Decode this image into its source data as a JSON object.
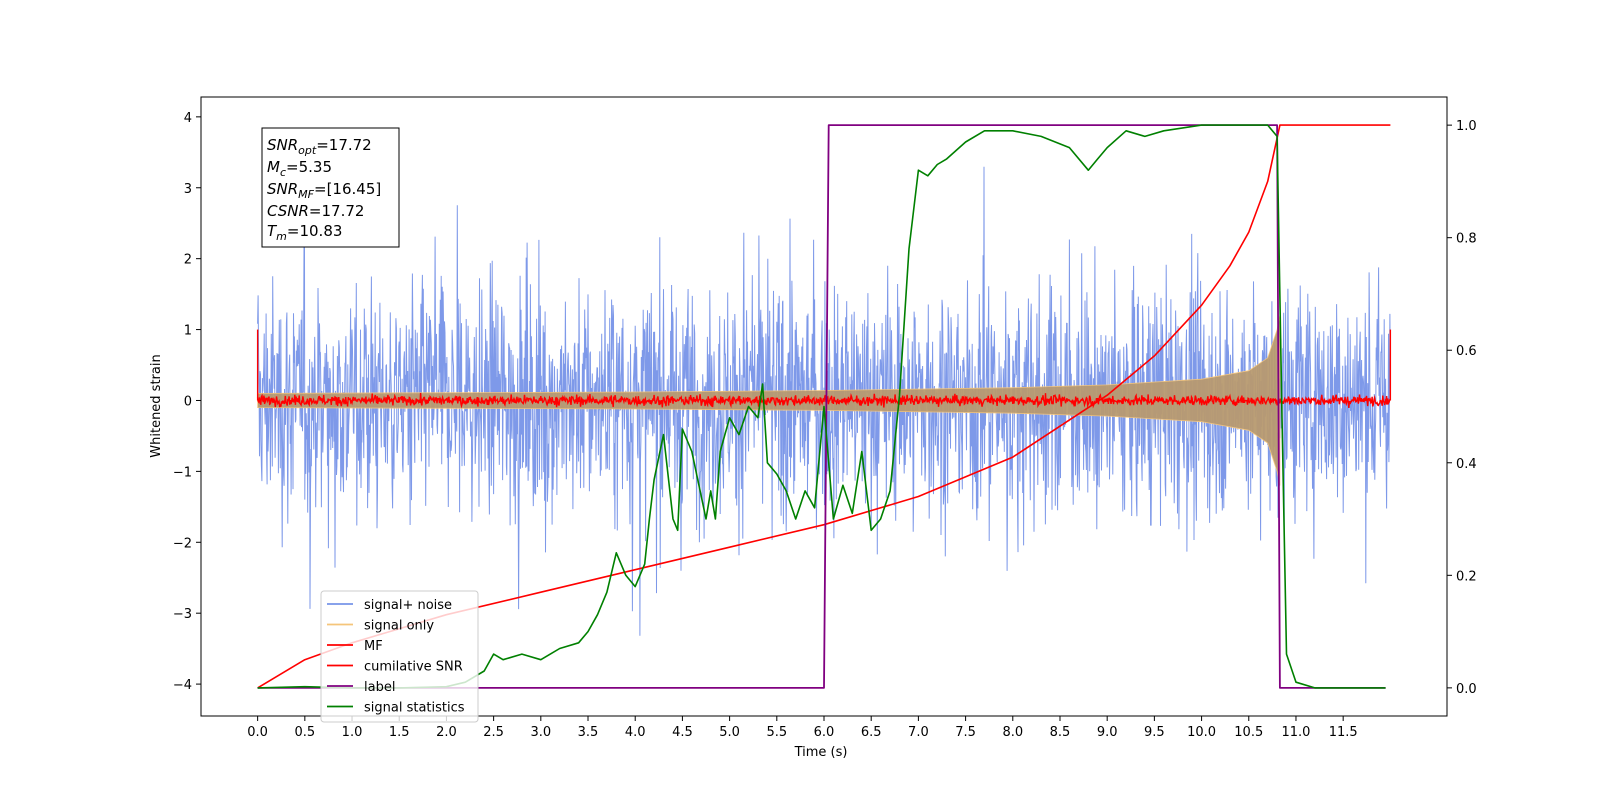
{
  "chart_data": {
    "type": "line",
    "xlabel": "Time (s)",
    "ylabel": "Whitened strain",
    "xlim": [
      -0.6,
      12.6
    ],
    "ylim": [
      -4.45,
      4.28
    ],
    "y2lim": [
      -0.05,
      1.05
    ],
    "x_ticks": [
      "0.0",
      "0.5",
      "1.0",
      "1.5",
      "2.0",
      "2.5",
      "3.0",
      "3.5",
      "4.0",
      "4.5",
      "5.0",
      "5.5",
      "6.0",
      "6.5",
      "7.0",
      "7.5",
      "8.0",
      "8.5",
      "9.0",
      "9.5",
      "10.0",
      "10.5",
      "11.0",
      "11.5"
    ],
    "y_ticks": [
      "4",
      "3",
      "2",
      "1",
      "0",
      "−1",
      "−2",
      "−3",
      "−4"
    ],
    "y2_ticks": [
      "1.0",
      "0.8",
      "0.6",
      "0.4",
      "0.2",
      "0.0"
    ],
    "grid": false,
    "legend_position": "lower-left",
    "annotation": {
      "snr_opt": {
        "name": "SNR",
        "sub": "opt",
        "value": "=17.72"
      },
      "mc": {
        "name": "M",
        "sub": "c",
        "value": "=5.35"
      },
      "snr_mf": {
        "name": "SNR",
        "sub": "MF",
        "value": "=[16.45]"
      },
      "csnr": {
        "name": "CSNR",
        "value": "=17.72"
      },
      "tm": {
        "name": "T",
        "sub": "m",
        "value": "=10.83"
      }
    },
    "series": [
      {
        "name": "signal+ noise",
        "color": "#7794e8",
        "axis": "left",
        "x_range": [
          0.0,
          12.0
        ],
        "amplitude_range": [
          -3.6,
          3.9
        ]
      },
      {
        "name": "signal only",
        "color": "#f5c57a",
        "axis": "left",
        "envelope": {
          "x": [
            0.0,
            2.0,
            4.0,
            6.0,
            8.0,
            9.0,
            10.0,
            10.5,
            10.7,
            10.8,
            10.83
          ],
          "amp": [
            0.1,
            0.11,
            0.12,
            0.14,
            0.18,
            0.22,
            0.3,
            0.42,
            0.6,
            1.0,
            1.2
          ]
        }
      },
      {
        "name": "MF",
        "color": "#ff0000",
        "axis": "left",
        "x_range": [
          0.0,
          12.0
        ],
        "amplitude": 0.1
      },
      {
        "name": "cumilative SNR",
        "color": "#ff0000",
        "axis": "right",
        "x": [
          0.0,
          0.5,
          1.0,
          2.0,
          3.0,
          4.0,
          5.0,
          6.0,
          7.0,
          8.0,
          9.0,
          9.5,
          10.0,
          10.3,
          10.5,
          10.7,
          10.83,
          12.0
        ],
        "y": [
          0.0,
          0.05,
          0.08,
          0.13,
          0.17,
          0.21,
          0.25,
          0.29,
          0.34,
          0.41,
          0.52,
          0.59,
          0.68,
          0.75,
          0.81,
          0.9,
          1.0,
          1.0
        ]
      },
      {
        "name": "label",
        "color": "#800080",
        "axis": "right",
        "x": [
          0.0,
          6.0,
          6.05,
          10.8,
          10.83,
          11.95
        ],
        "y": [
          0.0,
          0.0,
          1.0,
          1.0,
          0.0,
          0.0
        ]
      },
      {
        "name": "signal statistics",
        "color": "#008000",
        "axis": "right",
        "x": [
          0.0,
          0.5,
          1.0,
          1.5,
          2.0,
          2.2,
          2.4,
          2.5,
          2.6,
          2.8,
          3.0,
          3.1,
          3.2,
          3.4,
          3.5,
          3.6,
          3.7,
          3.8,
          3.9,
          4.0,
          4.1,
          4.15,
          4.2,
          4.3,
          4.4,
          4.45,
          4.5,
          4.6,
          4.7,
          4.75,
          4.8,
          4.85,
          4.9,
          5.0,
          5.1,
          5.2,
          5.3,
          5.35,
          5.4,
          5.5,
          5.6,
          5.7,
          5.8,
          5.9,
          6.0,
          6.1,
          6.2,
          6.3,
          6.4,
          6.5,
          6.6,
          6.7,
          6.8,
          6.9,
          7.0,
          7.1,
          7.2,
          7.3,
          7.5,
          7.7,
          8.0,
          8.3,
          8.6,
          8.8,
          8.9,
          9.0,
          9.2,
          9.4,
          9.6,
          10.0,
          10.5,
          10.7,
          10.8,
          10.85,
          10.9,
          11.0,
          11.2,
          11.95
        ],
        "y": [
          0.0,
          0.002,
          0.0,
          0.0,
          0.002,
          0.01,
          0.03,
          0.06,
          0.05,
          0.06,
          0.05,
          0.06,
          0.07,
          0.08,
          0.1,
          0.13,
          0.17,
          0.24,
          0.2,
          0.18,
          0.22,
          0.3,
          0.37,
          0.45,
          0.3,
          0.28,
          0.46,
          0.42,
          0.34,
          0.3,
          0.35,
          0.3,
          0.42,
          0.48,
          0.45,
          0.5,
          0.48,
          0.54,
          0.4,
          0.38,
          0.35,
          0.3,
          0.35,
          0.32,
          0.5,
          0.3,
          0.36,
          0.31,
          0.42,
          0.28,
          0.3,
          0.35,
          0.52,
          0.78,
          0.92,
          0.91,
          0.93,
          0.94,
          0.97,
          0.99,
          0.99,
          0.98,
          0.96,
          0.92,
          0.94,
          0.96,
          0.99,
          0.98,
          0.99,
          1.0,
          1.0,
          1.0,
          0.98,
          0.5,
          0.06,
          0.01,
          0.0,
          0.0
        ]
      }
    ]
  }
}
